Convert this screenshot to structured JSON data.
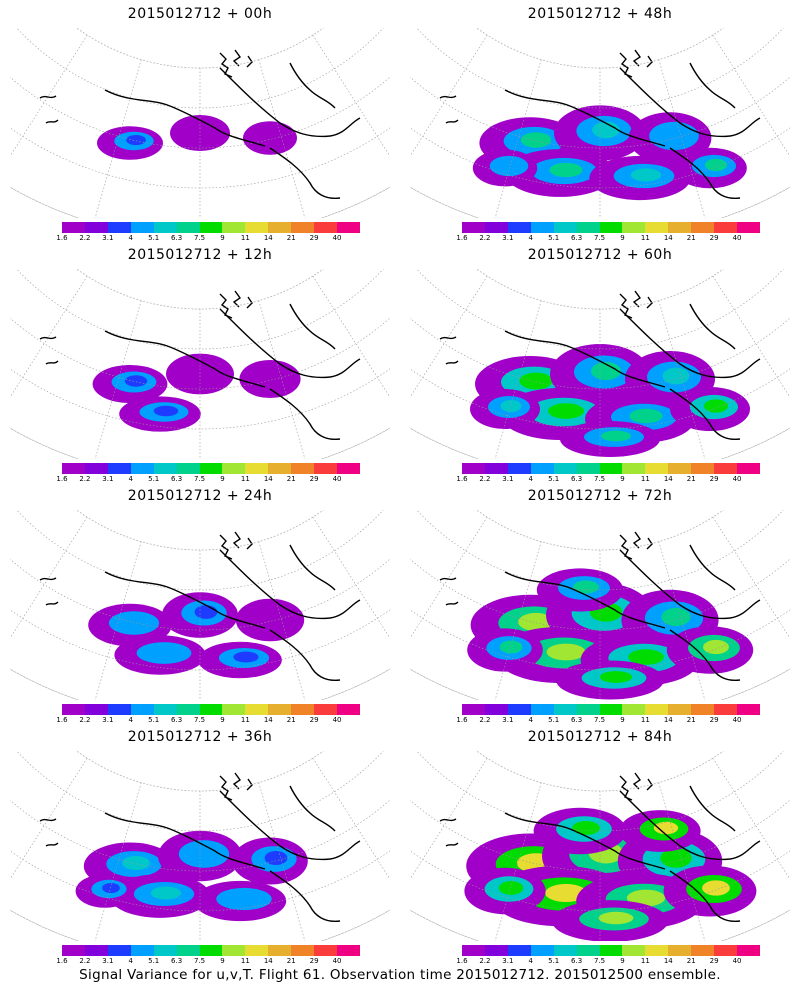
{
  "figure": {
    "caption": "Signal Variance for u,v,T. Flight 61. Observation time 2015012712. 2015012500 ensemble."
  },
  "colorbar": {
    "ticks": [
      "1.6",
      "2.2",
      "3.1",
      "4",
      "5.1",
      "6.3",
      "7.5",
      "9",
      "11",
      "14",
      "21",
      "29",
      "40"
    ],
    "colors": [
      "#a000c8",
      "#8200dc",
      "#1e3cff",
      "#00a0ff",
      "#00c8c8",
      "#00d28c",
      "#00dc00",
      "#a0e632",
      "#e6dc32",
      "#e6af2d",
      "#f08228",
      "#fa3c3c",
      "#f00082"
    ]
  },
  "panels": [
    {
      "title": "2015012712 + 00h",
      "intensity": 0
    },
    {
      "title": "2015012712 + 48h",
      "intensity": 4
    },
    {
      "title": "2015012712 + 12h",
      "intensity": 1
    },
    {
      "title": "2015012712 + 60h",
      "intensity": 5
    },
    {
      "title": "2015012712 + 24h",
      "intensity": 2
    },
    {
      "title": "2015012712 + 72h",
      "intensity": 6
    },
    {
      "title": "2015012712 + 36h",
      "intensity": 3
    },
    {
      "title": "2015012712 + 84h",
      "intensity": 7
    }
  ]
}
